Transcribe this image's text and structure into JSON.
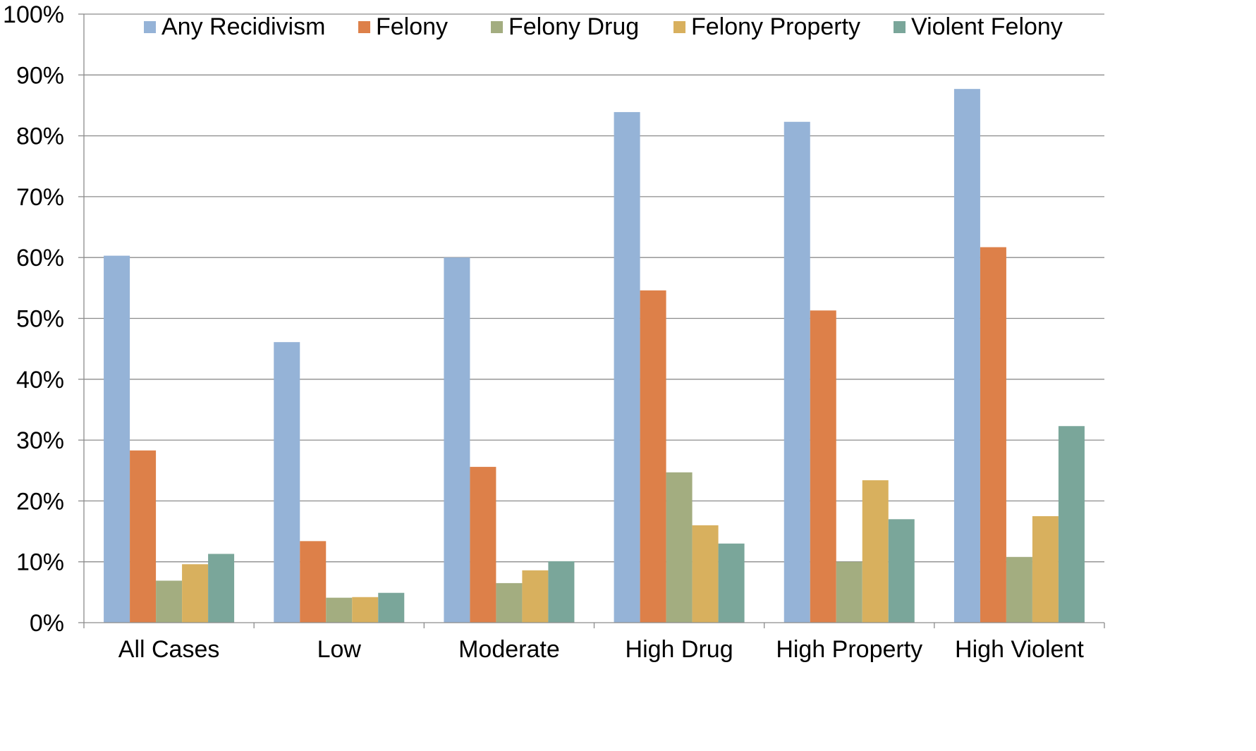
{
  "chart_data": {
    "type": "bar",
    "categories": [
      "All Cases",
      "Low",
      "Moderate",
      "High Drug",
      "High Property",
      "High Violent"
    ],
    "series": [
      {
        "name": "Any Recidivism",
        "color": "#95B3D7",
        "values": [
          60.3,
          46.1,
          60.0,
          83.9,
          82.3,
          87.7
        ]
      },
      {
        "name": "Felony",
        "color": "#DD8049",
        "values": [
          28.3,
          13.4,
          25.6,
          54.6,
          51.3,
          61.7
        ]
      },
      {
        "name": "Felony Drug",
        "color": "#A3AD80",
        "values": [
          6.9,
          4.1,
          6.5,
          24.7,
          10.0,
          10.8
        ]
      },
      {
        "name": "Felony Property",
        "color": "#D8B05E",
        "values": [
          9.6,
          4.2,
          8.6,
          16.0,
          23.4,
          17.5
        ]
      },
      {
        "name": "Violent Felony",
        "color": "#7AA69A",
        "values": [
          11.3,
          4.9,
          10.1,
          13.0,
          17.0,
          32.3
        ]
      }
    ],
    "y_ticks": [
      "0%",
      "10%",
      "20%",
      "30%",
      "40%",
      "50%",
      "60%",
      "70%",
      "80%",
      "90%",
      "100%"
    ],
    "ylim": [
      0,
      100
    ],
    "title": "",
    "xlabel": "",
    "ylabel": "",
    "grid": true,
    "legend": "top"
  }
}
